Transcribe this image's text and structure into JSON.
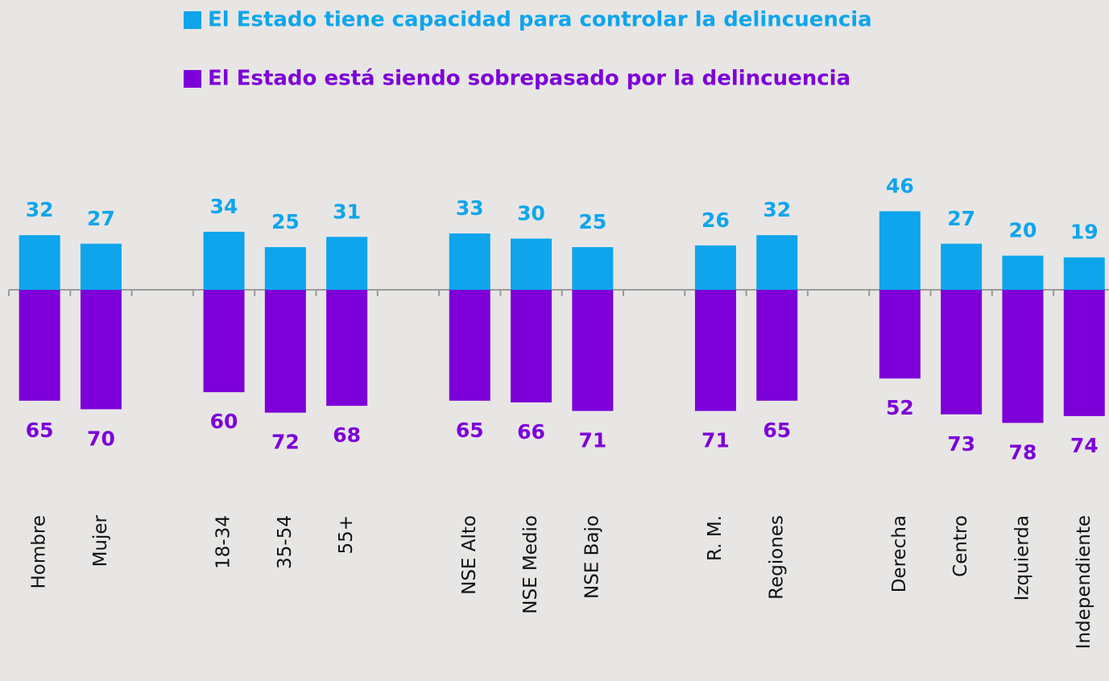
{
  "chart_data": {
    "type": "diverging-bar",
    "categories": [
      "Hombre",
      "Mujer",
      null,
      "18-34",
      "35-54",
      "55+",
      null,
      "NSE Alto",
      "NSE Medio",
      "NSE Bajo",
      null,
      "R. M.",
      "Regiones",
      null,
      "Derecha",
      "Centro",
      "Izquierda",
      "Independiente"
    ],
    "series": [
      {
        "name": "El Estado tiene capacidad para controlar la delincuencia",
        "color": "#0ea5ec",
        "values": [
          32,
          27,
          null,
          34,
          25,
          31,
          null,
          33,
          30,
          25,
          null,
          26,
          32,
          null,
          46,
          27,
          20,
          19
        ]
      },
      {
        "name": "El Estado está siendo sobrepasado por la delincuencia",
        "color": "#7d00d9",
        "values": [
          65,
          70,
          null,
          60,
          72,
          68,
          null,
          65,
          66,
          71,
          null,
          71,
          65,
          null,
          52,
          73,
          78,
          74
        ]
      }
    ],
    "ylim": [
      0,
      100
    ]
  }
}
